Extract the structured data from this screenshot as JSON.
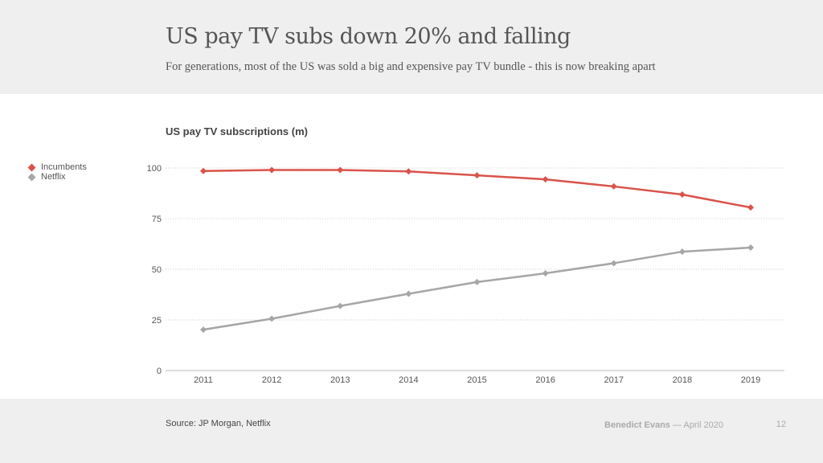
{
  "header": {
    "title": "US pay TV subs down 20% and falling",
    "subtitle": "For generations, most of the US was sold a big and expensive pay TV bundle - this is now breaking apart"
  },
  "footer": {
    "source": "Source: JP Morgan, Netflix",
    "author": "Benedict Evans",
    "date": "— April 2020",
    "page": "12"
  },
  "chart_data": {
    "type": "line",
    "title": "US pay TV subscriptions (m)",
    "xlabel": "",
    "ylabel": "",
    "x": [
      "2011",
      "2012",
      "2013",
      "2014",
      "2015",
      "2016",
      "2017",
      "2018",
      "2019"
    ],
    "ylim": [
      0,
      100
    ],
    "yticks": [
      0,
      25,
      50,
      75,
      100
    ],
    "grid": true,
    "legend_position": "left",
    "series": [
      {
        "name": "Incumbents",
        "color": "#d9534a",
        "values": [
          98.5,
          99.0,
          99.0,
          98.3,
          96.4,
          94.4,
          90.9,
          86.9,
          80.5
        ]
      },
      {
        "name": "Netflix",
        "color": "#a6a6a6",
        "values": [
          20.2,
          25.6,
          31.9,
          37.9,
          43.7,
          48.0,
          53.0,
          58.7,
          60.7
        ]
      }
    ]
  }
}
